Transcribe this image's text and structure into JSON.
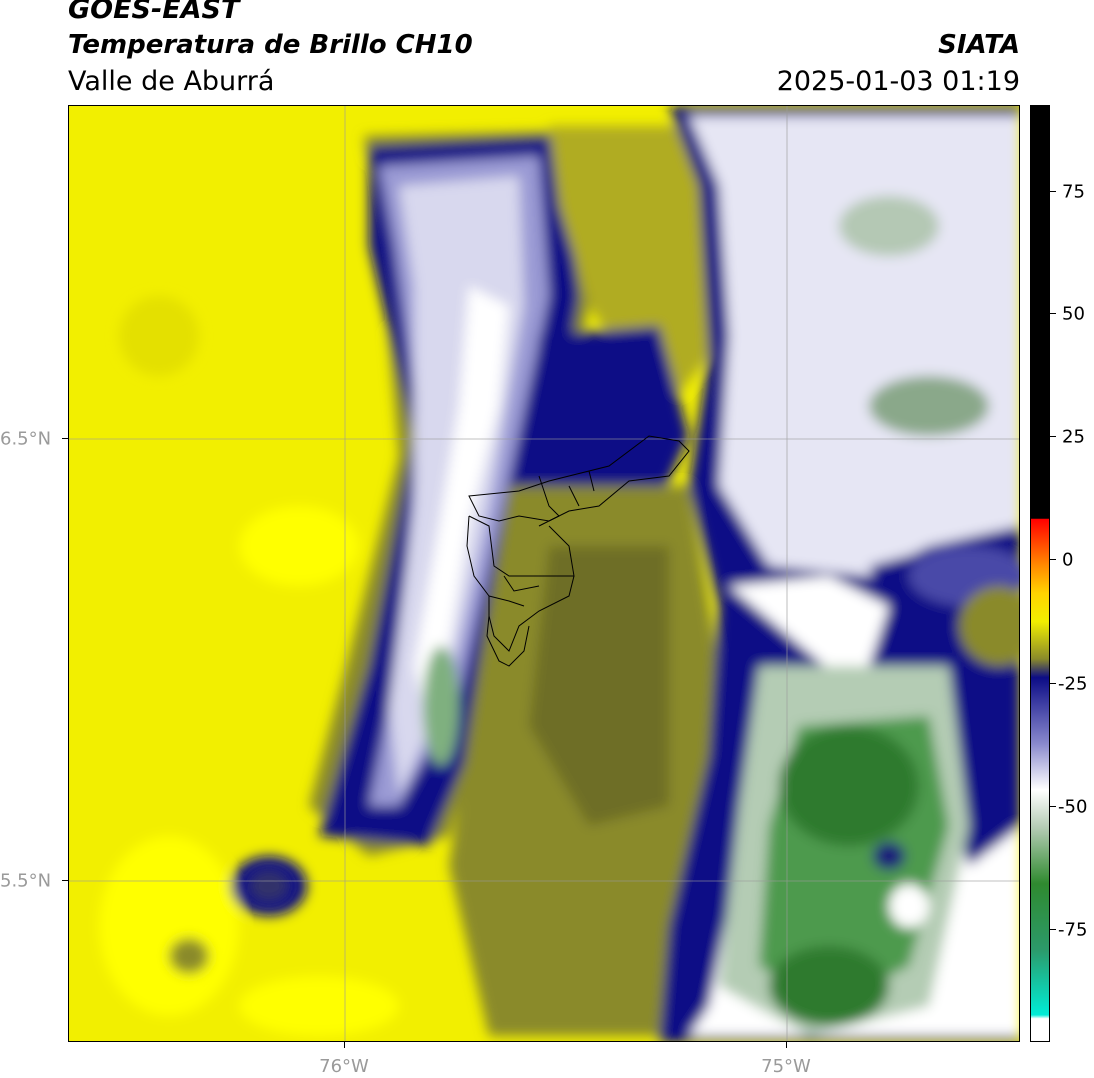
{
  "header": {
    "satellite": "GOES-EAST",
    "product": "Temperatura de Brillo CH10",
    "region": "Valle de Aburrá",
    "agency": "SIATA",
    "datetime": "2025-01-03 01:19"
  },
  "map": {
    "lat_labels": [
      "6.5°N",
      "5.5°N"
    ],
    "lon_labels": [
      "76°W",
      "75°W"
    ],
    "gridlines": true,
    "boundary_layer": "municipios-valle-de-aburra"
  },
  "colorbar": {
    "labels": [
      "75",
      "50",
      "25",
      "0",
      "-25",
      "-50",
      "-75"
    ],
    "colors": {
      "black": "#000000",
      "red": "#ff1500",
      "orange": "#ff9a00",
      "yellow": "#f2ef00",
      "olive": "#8a8a2a",
      "navy": "#0c0c86",
      "lavender": "#b4b4de",
      "white": "#ffffff",
      "green": "#2f8a2f",
      "cyan": "#00ecd6"
    }
  }
}
